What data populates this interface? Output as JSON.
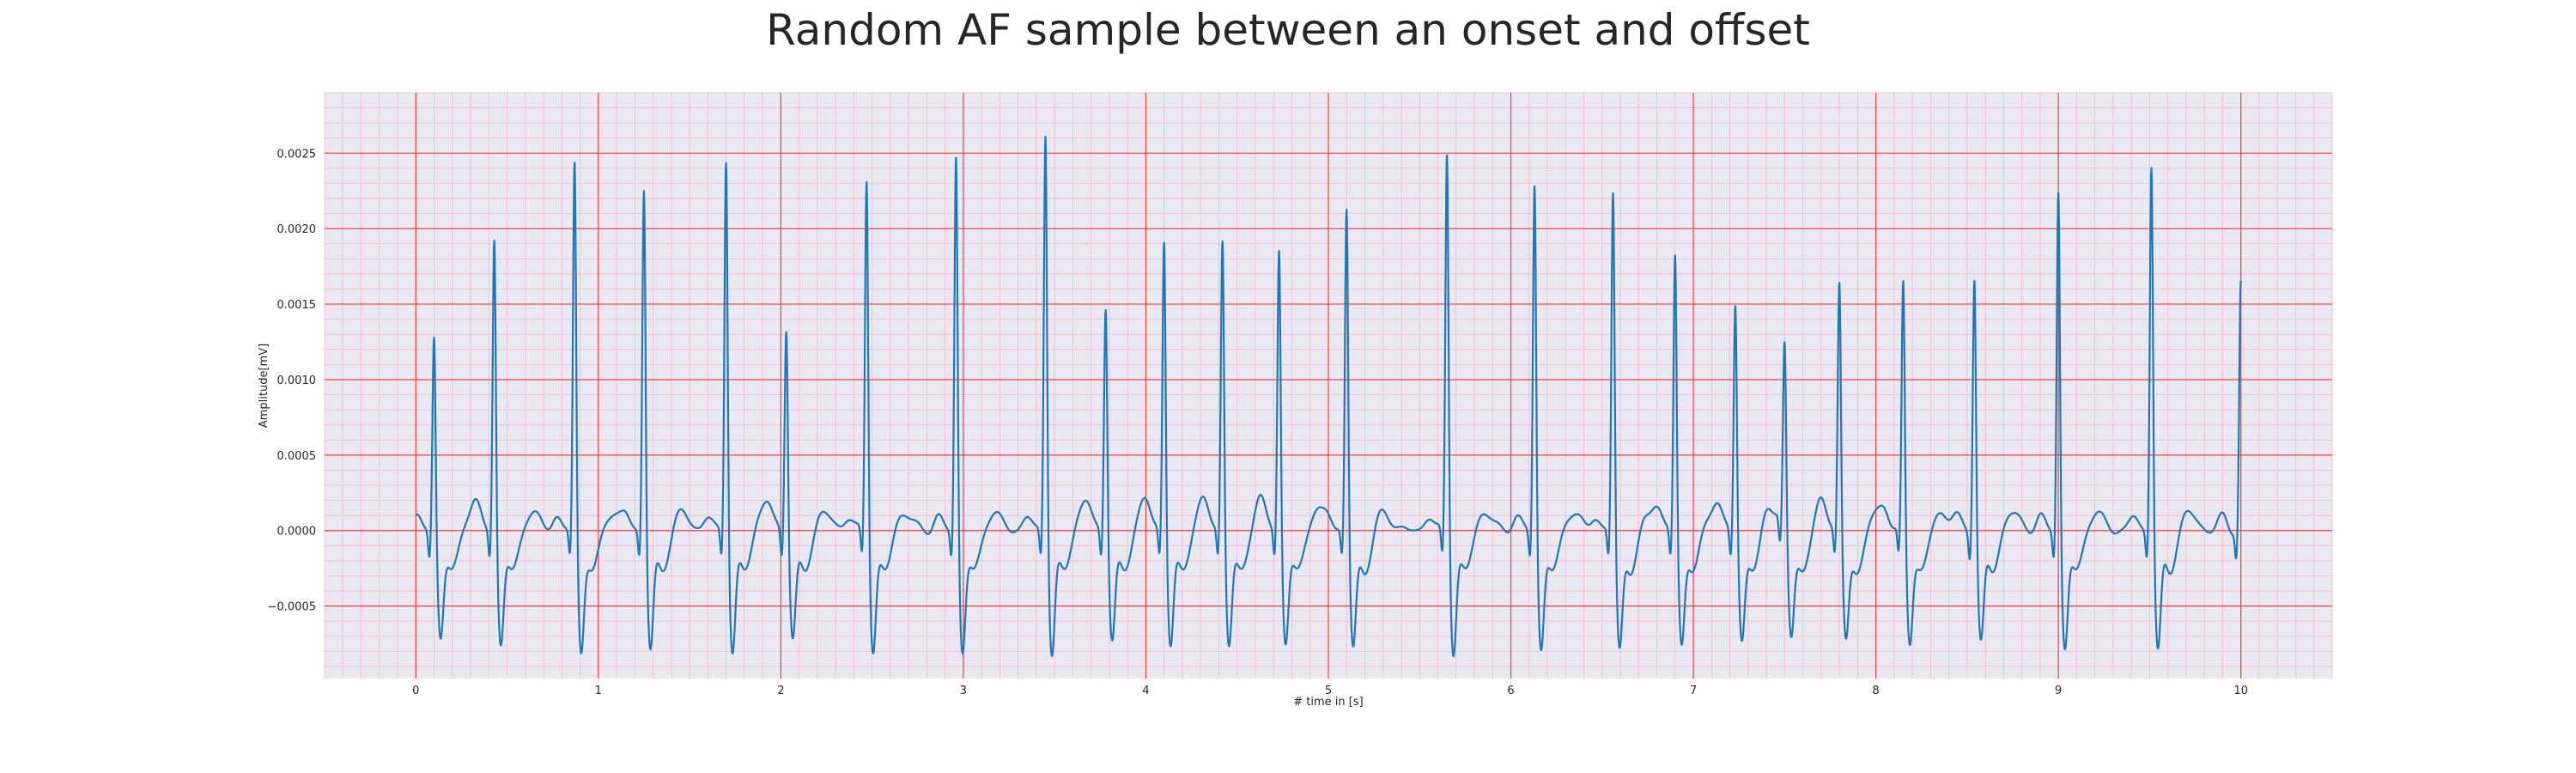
{
  "chart_data": {
    "type": "line",
    "title": "Random AF sample between an onset and offset",
    "xlabel": "# time in [s]",
    "ylabel": "Amplitude[mV]",
    "xlim": [
      -0.5,
      10.5
    ],
    "ylim": [
      -0.00098,
      0.0029
    ],
    "x_ticks": [
      0,
      1,
      2,
      3,
      4,
      5,
      6,
      7,
      8,
      9,
      10
    ],
    "y_ticks": [
      -0.0005,
      0.0,
      0.0005,
      0.001,
      0.0015,
      0.002,
      0.0025
    ],
    "y_tick_labels": [
      "−0.0005",
      "0.0000",
      "0.0005",
      "0.0010",
      "0.0015",
      "0.0020",
      "0.0025"
    ],
    "grid": {
      "major": true,
      "minor": true,
      "major_color": "#ff3b3b",
      "minor_color": "#f2b8c6"
    },
    "background_color": "#eae8f2",
    "line_color": "#1f77b4",
    "series": [
      {
        "beats": [
          {
            "t": 0.1,
            "peak": 0.00135
          },
          {
            "t": 0.43,
            "peak": 0.002
          },
          {
            "t": 0.87,
            "peak": 0.0025
          },
          {
            "t": 1.25,
            "peak": 0.00234
          },
          {
            "t": 1.7,
            "peak": 0.00254
          },
          {
            "t": 2.03,
            "peak": 0.00141
          },
          {
            "t": 2.47,
            "peak": 0.0024
          },
          {
            "t": 2.96,
            "peak": 0.00255
          },
          {
            "t": 3.45,
            "peak": 0.00271
          },
          {
            "t": 3.78,
            "peak": 0.00155
          },
          {
            "t": 4.1,
            "peak": 0.00199
          },
          {
            "t": 4.42,
            "peak": 0.00199
          },
          {
            "t": 4.73,
            "peak": 0.00192
          },
          {
            "t": 5.1,
            "peak": 0.00219
          },
          {
            "t": 5.65,
            "peak": 0.00258
          },
          {
            "t": 6.13,
            "peak": 0.00237
          },
          {
            "t": 6.56,
            "peak": 0.0023
          },
          {
            "t": 6.9,
            "peak": 0.00189
          },
          {
            "t": 7.23,
            "peak": 0.00156
          },
          {
            "t": 7.5,
            "peak": 0.00125
          },
          {
            "t": 7.8,
            "peak": 0.00167
          },
          {
            "t": 8.15,
            "peak": 0.00169
          },
          {
            "t": 8.54,
            "peak": 0.00175
          },
          {
            "t": 9.0,
            "peak": 0.00232
          },
          {
            "t": 9.51,
            "peak": 0.0025
          },
          {
            "t": 10.0,
            "peak": 0.00171
          }
        ]
      }
    ]
  }
}
